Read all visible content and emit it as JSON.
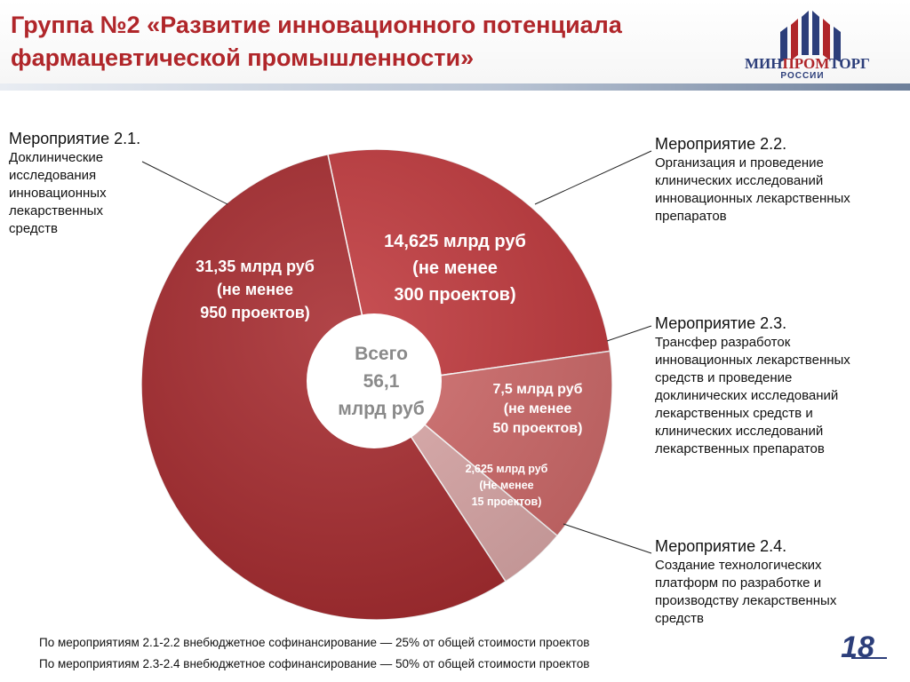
{
  "header": {
    "title_line1": "Группа №2 «Развитие инновационного потенциала",
    "title_line2": "фармацевтической промышленности»",
    "logo_main_a": "МИН",
    "logo_main_b": "ПРОМ",
    "logo_main_c": "ТОРГ",
    "logo_sub": "РОССИИ"
  },
  "chart_data": {
    "type": "pie",
    "total_label": [
      "Всего",
      "56,1",
      "млрд руб"
    ],
    "total_value": 56.1,
    "unit": "млрд руб",
    "slices": [
      {
        "id": "2.2",
        "value": 14.625,
        "projects": 300,
        "label": [
          "14,625 млрд руб",
          "(не менее",
          "300 проектов)"
        ],
        "color": "#c0393d"
      },
      {
        "id": "2.3",
        "value": 7.5,
        "projects": 50,
        "label": [
          "7,5 млрд руб",
          "(не менее",
          "50 проектов)"
        ],
        "color": "#cf6a6a"
      },
      {
        "id": "2.4",
        "value": 2.625,
        "projects": 15,
        "label": [
          "2,625 млрд руб",
          "(Не менее",
          "15 проектов)"
        ],
        "color": "#dba8a8"
      },
      {
        "id": "2.1",
        "value": 31.35,
        "projects": 950,
        "label": [
          "31,35 млрд руб",
          "(не менее",
          "950 проектов)"
        ],
        "color": "#a62b2f"
      }
    ]
  },
  "events": {
    "e21": {
      "head": "Мероприятие 2.1.",
      "lines": [
        "Доклинические",
        "исследования",
        "инновационных",
        "лекарственных",
        "средств"
      ]
    },
    "e22": {
      "head": "Мероприятие 2.2.",
      "lines": [
        "Организация и проведение",
        "клинических исследований",
        "инновационных лекарственных",
        "препаратов"
      ]
    },
    "e23": {
      "head": "Мероприятие 2.3.",
      "lines": [
        "Трансфер разработок",
        "инновационных лекарственных",
        "средств и проведение",
        "доклинических исследований",
        "лекарственных средств и",
        "клинических исследований",
        "лекарственных препаратов"
      ]
    },
    "e24": {
      "head": "Мероприятие 2.4.",
      "lines": [
        "Создание технологических",
        "платформ по разработке и",
        "производству лекарственных",
        "средств"
      ]
    }
  },
  "footer": {
    "note1": "По мероприятиям 2.1-2.2 внебюджетное софинансирование — 25% от общей стоимости проектов",
    "note2": "По мероприятиям 2.3-2.4 внебюджетное софинансирование — 50% от общей стоимости проектов",
    "page": "18"
  }
}
